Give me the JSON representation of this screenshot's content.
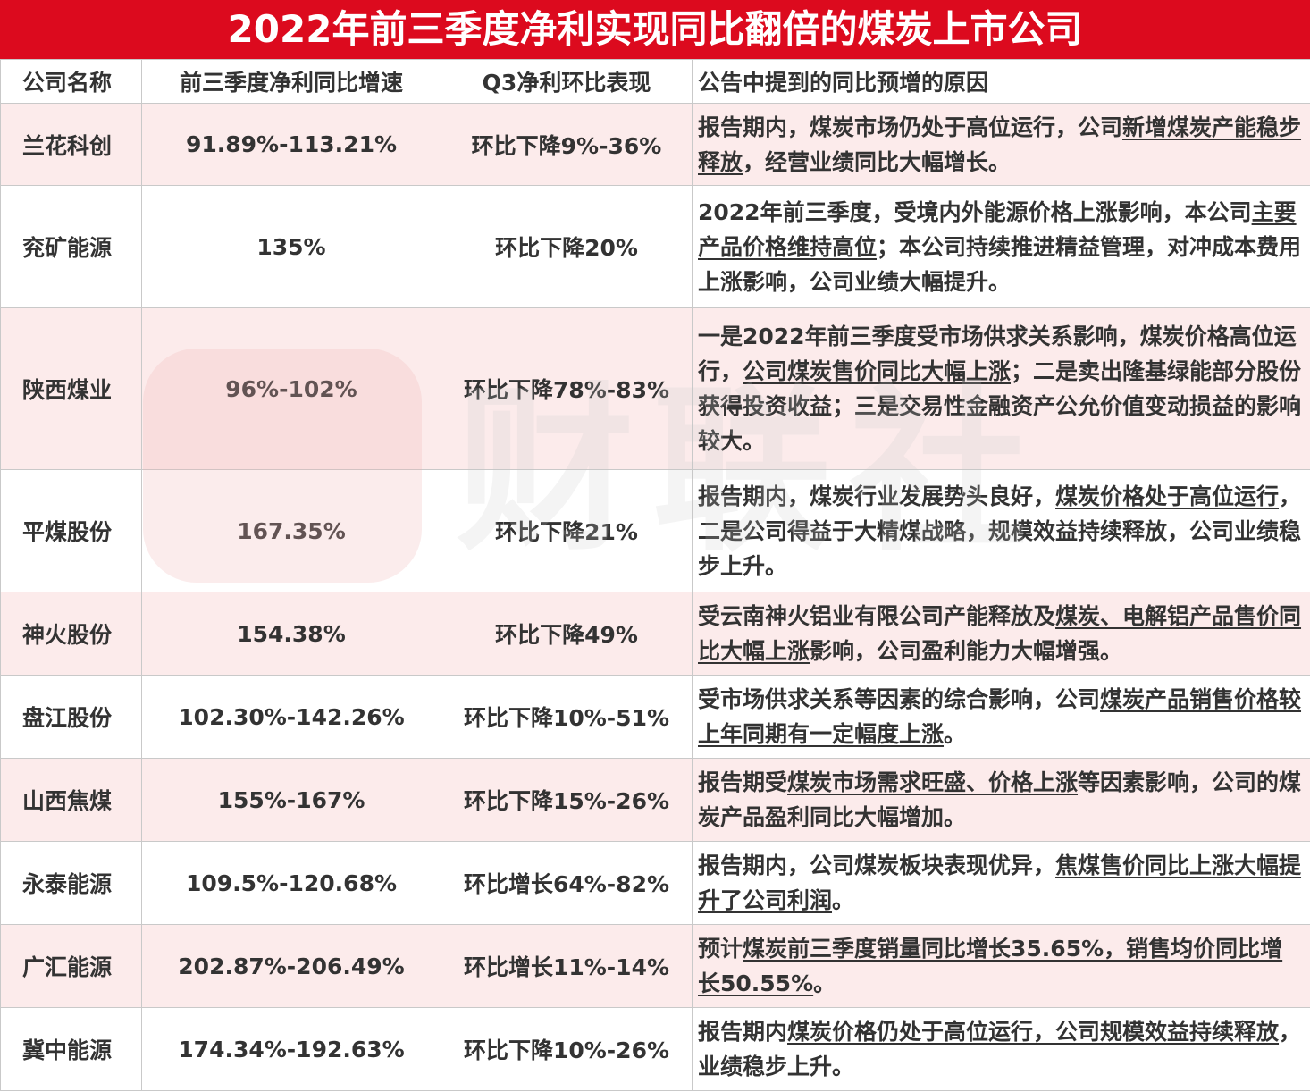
{
  "title": "2022年前三季度净利实现同比翻倍的煤炭上市公司",
  "headers": [
    "公司名称",
    "前三季度净利同比增速",
    "Q3净利环比表现",
    "公告中提到的同比预增的原因"
  ],
  "watermark": "财联社",
  "colors": {
    "title_bg": "#dc0a1e",
    "row_highlight": "#fce8e8"
  },
  "rows": [
    {
      "company": "兰花科创",
      "yoy": "91.89%-113.21%",
      "qoq": "环比下降9%-36%",
      "reason": [
        {
          "text": "报告期内，煤炭市场仍处于高位运行，公司",
          "u": false
        },
        {
          "text": "新增煤炭产能稳步释放",
          "u": true
        },
        {
          "text": "，经营业绩同比大幅增长。",
          "u": false
        }
      ]
    },
    {
      "company": "兖矿能源",
      "yoy": "135%",
      "qoq": "环比下降20%",
      "reason": [
        {
          "text": "2022年前三季度，受境内外能源价格上涨影响，本公司",
          "u": false
        },
        {
          "text": "主要产品价格维持高位",
          "u": true
        },
        {
          "text": "；本公司持续推进精益管理，对冲成本费用上涨影响，公司业绩大幅提升。",
          "u": false
        }
      ]
    },
    {
      "company": "陕西煤业",
      "yoy": "96%-102%",
      "qoq": "环比下降78%-83%",
      "reason": [
        {
          "text": "一是2022年前三季度受市场供求关系影响，煤炭价格高位运行，",
          "u": false
        },
        {
          "text": "公司煤炭售价同比大幅上涨",
          "u": true
        },
        {
          "text": "；二是卖出隆基绿能部分股份获得投资收益；三是交易性金融资产公允价值变动损益的影响较大。",
          "u": false
        }
      ]
    },
    {
      "company": "平煤股份",
      "yoy": "167.35%",
      "qoq": "环比下降21%",
      "reason": [
        {
          "text": "报告期内，煤炭行业发展势头良好，",
          "u": false
        },
        {
          "text": "煤炭价格处于高位运行",
          "u": true
        },
        {
          "text": "，二是公司得益于大精煤战略，规模效益持续释放，公司业绩稳步上升。",
          "u": false
        }
      ]
    },
    {
      "company": "神火股份",
      "yoy": "154.38%",
      "qoq": "环比下降49%",
      "reason": [
        {
          "text": "受云南神火铝业有限公司产能释放及",
          "u": false
        },
        {
          "text": "煤炭、电解铝产品售价同比大幅上涨",
          "u": true
        },
        {
          "text": "影响，公司盈利能力大幅增强。",
          "u": false
        }
      ]
    },
    {
      "company": "盘江股份",
      "yoy": "102.30%-142.26%",
      "qoq": "环比下降10%-51%",
      "reason": [
        {
          "text": "受市场供求关系等因素的综合影响，公司",
          "u": false
        },
        {
          "text": "煤炭产品销售价格较上年同期有一定幅度上涨",
          "u": true
        },
        {
          "text": "。",
          "u": false
        }
      ]
    },
    {
      "company": "山西焦煤",
      "yoy": "155%-167%",
      "qoq": "环比下降15%-26%",
      "reason": [
        {
          "text": "报告期受",
          "u": false
        },
        {
          "text": "煤炭市场需求旺盛、价格上涨",
          "u": true
        },
        {
          "text": "等因素影响，公司的煤炭产品盈利同比大幅增加。",
          "u": false
        }
      ]
    },
    {
      "company": "永泰能源",
      "yoy": "109.5%-120.68%",
      "qoq": "环比增长64%-82%",
      "reason": [
        {
          "text": "报告期内，公司煤炭板块表现优异，",
          "u": false
        },
        {
          "text": "焦煤售价同比上涨大幅提升了公司利润",
          "u": true
        },
        {
          "text": "。",
          "u": false
        }
      ]
    },
    {
      "company": "广汇能源",
      "yoy": "202.87%-206.49%",
      "qoq": "环比增长11%-14%",
      "reason": [
        {
          "text": "预计",
          "u": false
        },
        {
          "text": "煤炭前三季度销量同比增长35.65%，销售均价同比增长50.55%",
          "u": true
        },
        {
          "text": "。",
          "u": false
        }
      ]
    },
    {
      "company": "冀中能源",
      "yoy": "174.34%-192.63%",
      "qoq": "环比下降10%-26%",
      "reason": [
        {
          "text": "报告期内",
          "u": false
        },
        {
          "text": "煤炭价格仍处于高位运行，公司规模效益持续释放",
          "u": true
        },
        {
          "text": "，业绩稳步上升。",
          "u": false
        }
      ]
    }
  ]
}
